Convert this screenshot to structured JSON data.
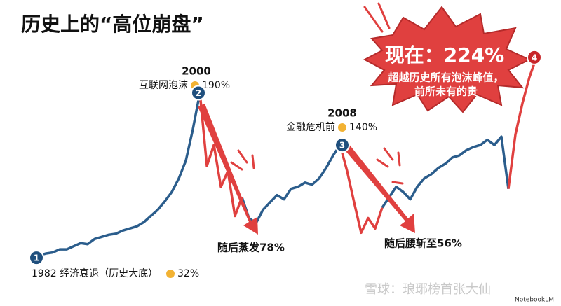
{
  "chart_data": {
    "type": "line",
    "title": "历史上的“高位崩盘”",
    "series": [
      {
        "color": "#2b5d8c",
        "values": [
          32,
          34,
          36,
          37,
          40,
          40,
          43,
          46,
          45,
          50,
          52,
          54,
          55,
          58,
          60,
          62,
          66,
          72,
          78,
          86,
          95,
          108,
          125,
          155,
          190,
          null,
          null,
          null,
          null,
          null,
          90,
          70,
          65,
          78,
          85,
          92,
          88,
          98,
          100,
          104,
          102,
          108,
          118,
          130,
          140,
          null,
          null,
          null,
          null,
          null,
          80,
          90,
          100,
          95,
          88,
          100,
          108,
          112,
          118,
          122,
          128,
          130,
          135,
          138,
          140,
          145,
          140,
          148,
          98,
          null,
          null,
          null,
          null
        ]
      },
      {
        "color": "#e0403f",
        "values": [
          null,
          null,
          null,
          null,
          null,
          null,
          null,
          null,
          null,
          null,
          null,
          null,
          null,
          null,
          null,
          null,
          null,
          null,
          null,
          null,
          null,
          null,
          null,
          null,
          190,
          120,
          140,
          100,
          115,
          72,
          90,
          null,
          null,
          null,
          null,
          null,
          null,
          null,
          null,
          null,
          null,
          null,
          null,
          null,
          140,
          115,
          85,
          56,
          70,
          60,
          80,
          null,
          null,
          null,
          null,
          null,
          null,
          null,
          null,
          null,
          null,
          null,
          null,
          null,
          null,
          null,
          null,
          null,
          98,
          150,
          180,
          205,
          224
        ]
      }
    ],
    "ylim": [
      20,
      240
    ],
    "annotations": [
      {
        "marker": "1",
        "text": "1982 经济衰退（历史大底）",
        "value": 32,
        "value_label": "32%"
      },
      {
        "marker": "2",
        "year": "2000",
        "text": "互联网泡沫",
        "value": 190,
        "value_label": "190%",
        "after": "随后蒸发78%"
      },
      {
        "marker": "3",
        "year": "2008",
        "text": "金融危机前",
        "value": 140,
        "value_label": "140%",
        "after": "随后腰斩至56%"
      },
      {
        "marker": "4",
        "value": 224
      }
    ],
    "callout": {
      "title": "现在：224%",
      "lines": [
        "超越历史所有泡沫峰值，",
        "前所未有的贵"
      ]
    }
  },
  "watermark": "雪球：琅琊榜首张大仙",
  "badge": "NotebookLM"
}
